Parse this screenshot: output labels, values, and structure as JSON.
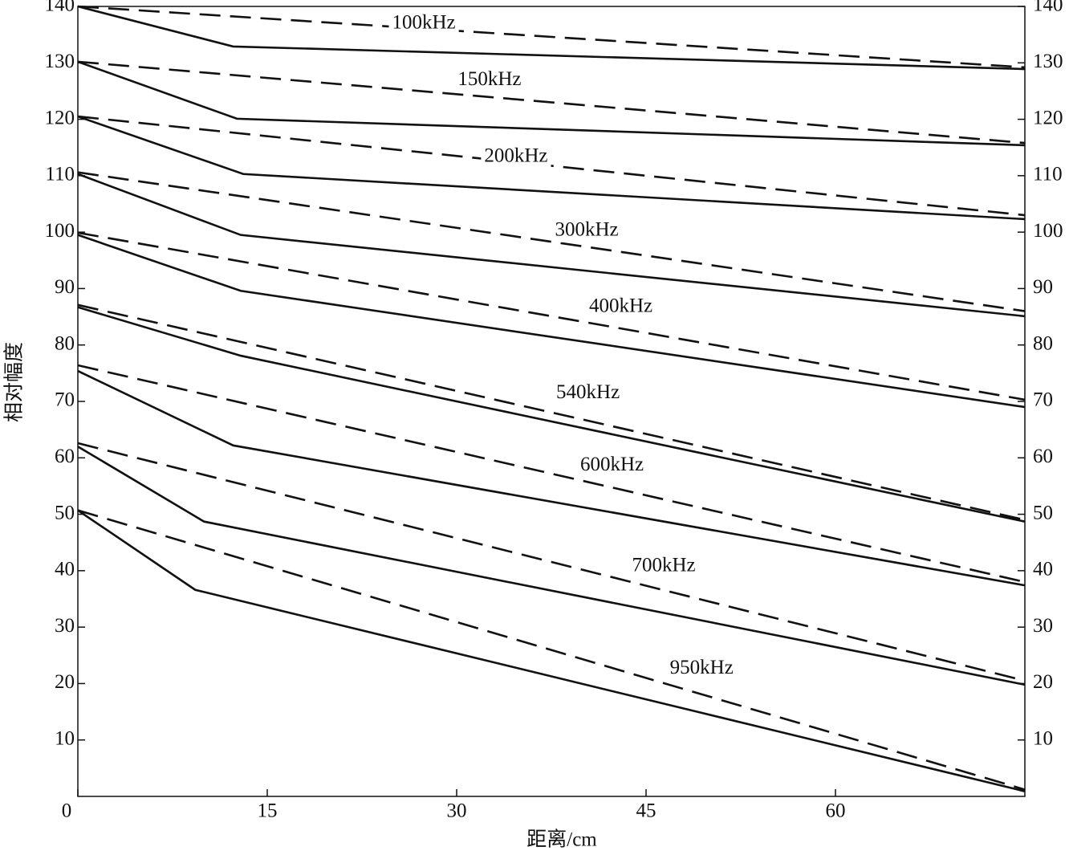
{
  "chart_data": {
    "type": "line",
    "x_label": "距离/cm",
    "y_label": "相对幅度",
    "xlim": [
      0,
      75
    ],
    "xticks": [
      0,
      15,
      30,
      45,
      60
    ],
    "ylim": [
      0,
      140
    ],
    "yticks": [
      10,
      20,
      30,
      40,
      50,
      60,
      70,
      80,
      90,
      100,
      110,
      120,
      130,
      140
    ],
    "right_axis_labels": true,
    "series": [
      {
        "color": "#111111",
        "dashed": false,
        "x": [
          0,
          12.3,
          75
        ],
        "values": [
          140,
          132.9,
          128.9
        ]
      },
      {
        "color": "#111111",
        "dashed": true,
        "x": [
          0,
          75
        ],
        "values": [
          140,
          129.2
        ]
      },
      {
        "color": "#111111",
        "dashed": false,
        "x": [
          0,
          12.6,
          75
        ],
        "values": [
          130.2,
          120.1,
          115.4
        ]
      },
      {
        "color": "#111111",
        "dashed": true,
        "x": [
          0,
          75
        ],
        "values": [
          130.2,
          115.8
        ]
      },
      {
        "color": "#111111",
        "dashed": false,
        "x": [
          0,
          13.1,
          75
        ],
        "values": [
          120.5,
          110.3,
          102.3
        ]
      },
      {
        "color": "#111111",
        "dashed": true,
        "x": [
          0,
          75
        ],
        "values": [
          120.5,
          103
        ]
      },
      {
        "color": "#111111",
        "dashed": false,
        "x": [
          0,
          12.9,
          75
        ],
        "values": [
          110.3,
          99.5,
          85.1
        ]
      },
      {
        "color": "#111111",
        "dashed": true,
        "x": [
          0,
          75
        ],
        "values": [
          110.6,
          86
        ]
      },
      {
        "color": "#111111",
        "dashed": false,
        "x": [
          0,
          12.9,
          75
        ],
        "values": [
          99.5,
          89.6,
          69
        ]
      },
      {
        "color": "#111111",
        "dashed": true,
        "x": [
          0,
          75
        ],
        "values": [
          99.9,
          70.3
        ]
      },
      {
        "color": "#111111",
        "dashed": false,
        "x": [
          0,
          12.9,
          75
        ],
        "values": [
          86.7,
          78.1,
          48.7
        ]
      },
      {
        "color": "#111111",
        "dashed": true,
        "x": [
          0,
          75
        ],
        "values": [
          87.1,
          49
        ]
      },
      {
        "color": "#111111",
        "dashed": false,
        "x": [
          0,
          12.3,
          75
        ],
        "values": [
          75.4,
          62.2,
          37.4
        ]
      },
      {
        "color": "#111111",
        "dashed": true,
        "x": [
          0,
          75
        ],
        "values": [
          76.4,
          38
        ]
      },
      {
        "color": "#111111",
        "dashed": false,
        "x": [
          0,
          10,
          75
        ],
        "values": [
          62,
          48.7,
          19.8
        ]
      },
      {
        "color": "#111111",
        "dashed": true,
        "x": [
          0,
          75
        ],
        "values": [
          62.6,
          20.5
        ]
      },
      {
        "color": "#111111",
        "dashed": false,
        "x": [
          0,
          9.3,
          75
        ],
        "values": [
          50.7,
          36.6,
          0.9
        ]
      },
      {
        "color": "#111111",
        "dashed": true,
        "x": [
          0,
          75
        ],
        "values": [
          50.7,
          1.2
        ]
      }
    ],
    "annotations": [
      {
        "text": "100kHz",
        "x": 27.4,
        "y": 136.9
      },
      {
        "text": "150kHz",
        "x": 32.6,
        "y": 126.9
      },
      {
        "text": "200kHz",
        "x": 34.7,
        "y": 113.3
      },
      {
        "text": "300kHz",
        "x": 40.3,
        "y": 100.2
      },
      {
        "text": "400kHz",
        "x": 43.0,
        "y": 86.7
      },
      {
        "text": "540kHz",
        "x": 40.4,
        "y": 71.4
      },
      {
        "text": "600kHz",
        "x": 42.3,
        "y": 58.6
      },
      {
        "text": "700kHz",
        "x": 46.4,
        "y": 40.7
      },
      {
        "text": "950kHz",
        "x": 49.4,
        "y": 22.6
      }
    ]
  }
}
